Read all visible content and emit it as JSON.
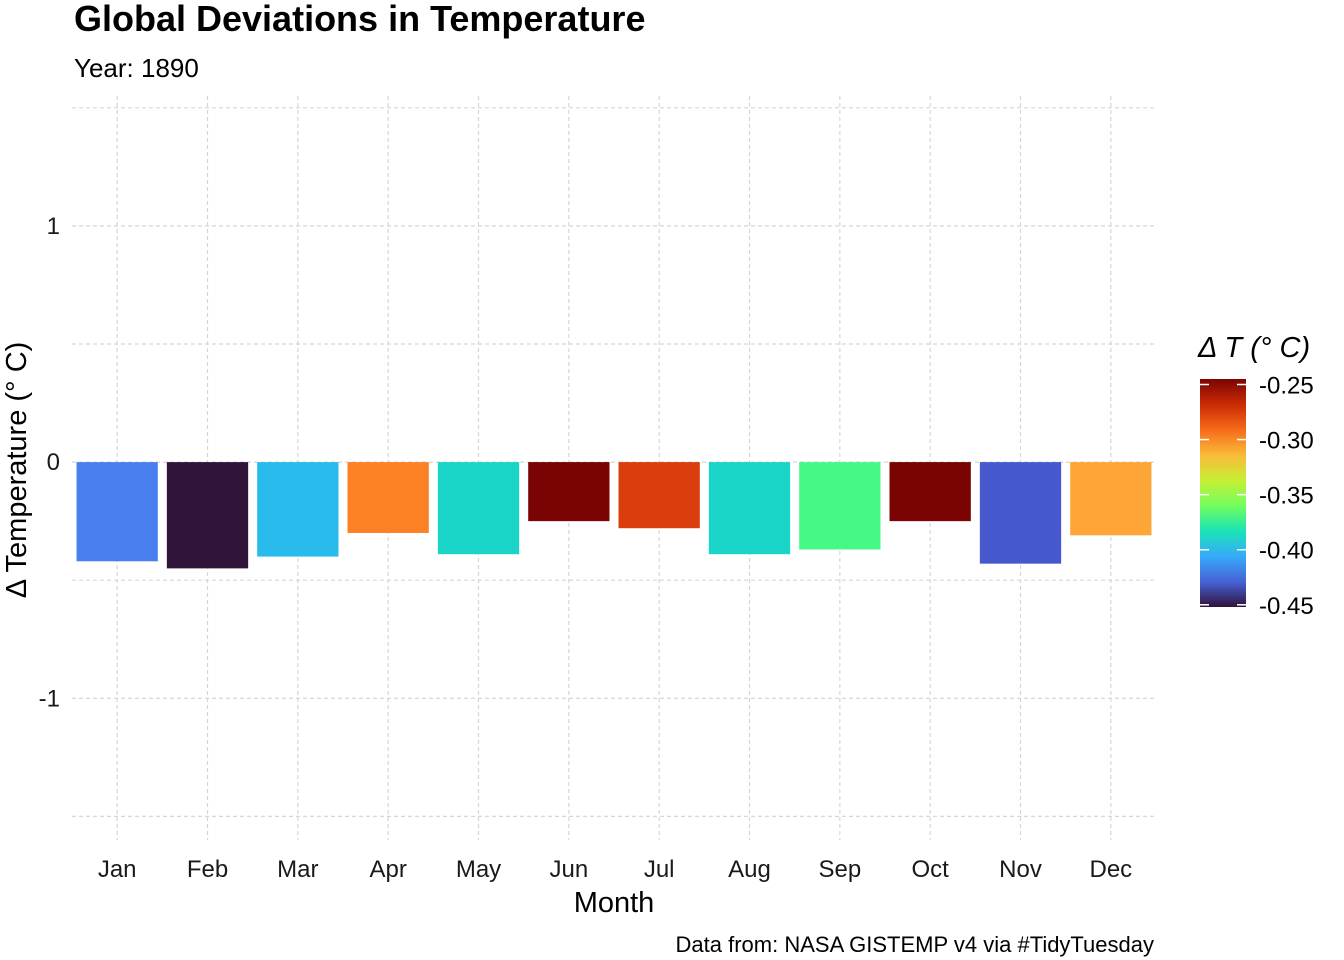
{
  "chart_data": {
    "type": "bar",
    "title": "Global Deviations in Temperature",
    "subtitle": "Year: 1890",
    "xlabel": "Month",
    "ylabel": "Δ Temperature (° C)",
    "caption": "Data from: NASA GISTEMP v4 via #TidyTuesday",
    "categories": [
      "Jan",
      "Feb",
      "Mar",
      "Apr",
      "May",
      "Jun",
      "Jul",
      "Aug",
      "Sep",
      "Oct",
      "Nov",
      "Dec"
    ],
    "values": [
      -0.42,
      -0.45,
      -0.4,
      -0.3,
      -0.39,
      -0.25,
      -0.28,
      -0.39,
      -0.37,
      -0.25,
      -0.43,
      -0.31
    ],
    "bar_colors": [
      "#4a7ff0",
      "#30143a",
      "#29bbec",
      "#fb8124",
      "#19d5c8",
      "#7a0403",
      "#db3e0d",
      "#19d5c8",
      "#46f884",
      "#7a0403",
      "#4558cd",
      "#fda537"
    ],
    "ylim": [
      -1.6,
      1.55
    ],
    "yticks": [
      -1,
      0,
      1
    ],
    "ytick_labels": [
      "-1",
      "0",
      "1"
    ],
    "grid": true,
    "legend": {
      "title": "Δ T (° C)",
      "position": "right",
      "breaks": [
        -0.25,
        -0.3,
        -0.35,
        -0.4,
        -0.45
      ],
      "labels": [
        "-0.25",
        "-0.30",
        "-0.35",
        "-0.40",
        "-0.45"
      ],
      "range": [
        -0.452,
        -0.245
      ],
      "gradient_colors": [
        "#30123b",
        "#4662d7",
        "#36aaf9",
        "#1ae4b6",
        "#72fe5e",
        "#c7ef34",
        "#fabb39",
        "#f66b19",
        "#cb2a04",
        "#7a0403"
      ]
    }
  }
}
